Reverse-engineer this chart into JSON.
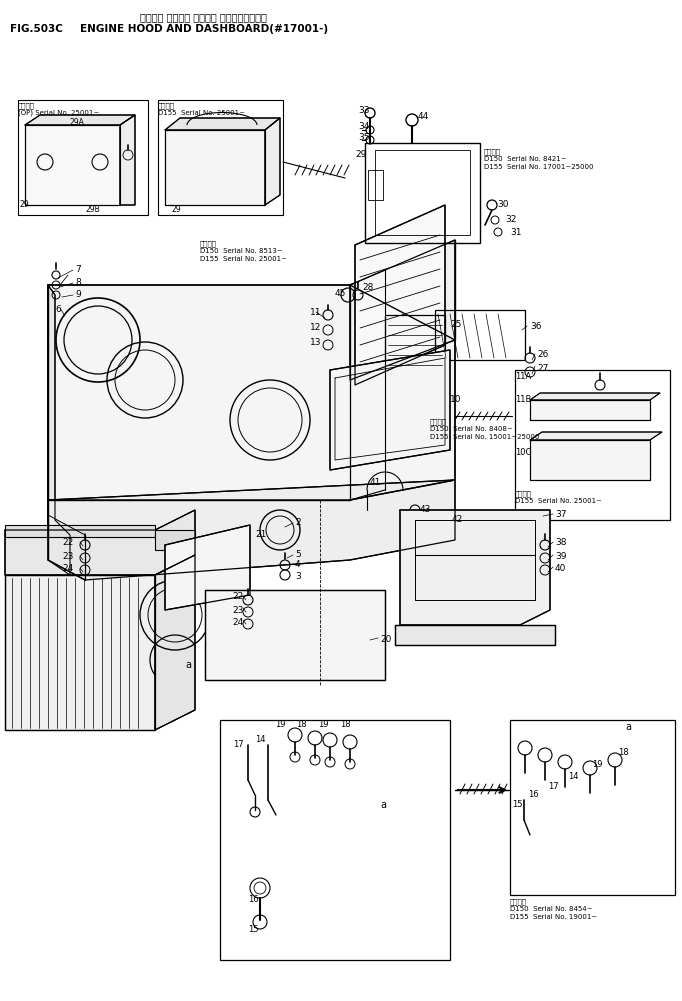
{
  "title_japanese": "エンジン フード・ オヨビ・ ダッシュボード・",
  "title_english": "ENGINE HOOD AND DASHBOARD(#17001-)",
  "fig_label": "FIG.503C",
  "bg": "#ffffff",
  "lc": "#000000",
  "fig_width": 6.82,
  "fig_height": 10.01,
  "dpi": 100
}
